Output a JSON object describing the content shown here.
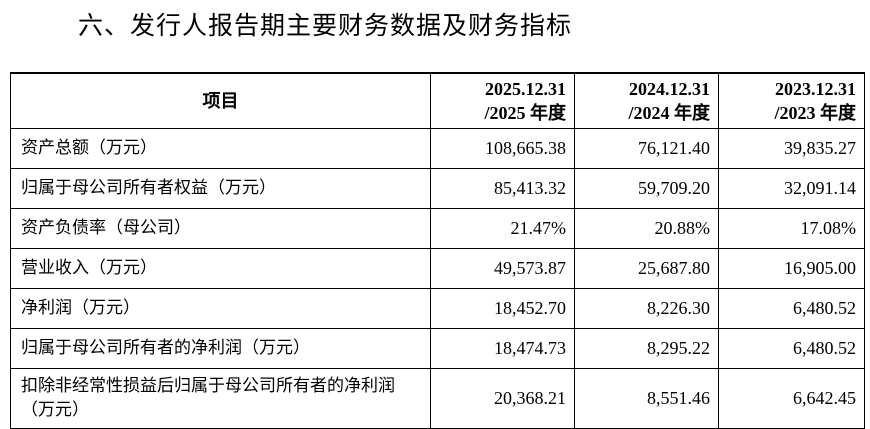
{
  "header": {
    "title": "六、发行人报告期主要财务数据及财务指标"
  },
  "table": {
    "columns": [
      {
        "lines": [
          "项目"
        ]
      },
      {
        "lines": [
          "2025.12.31",
          "/2025 年度"
        ]
      },
      {
        "lines": [
          "2024.12.31",
          "/2024 年度"
        ]
      },
      {
        "lines": [
          "2023.12.31",
          "/2023 年度"
        ]
      }
    ],
    "rows": [
      [
        "资产总额（万元）",
        "108,665.38",
        "76,121.40",
        "39,835.27"
      ],
      [
        "归属于母公司所有者权益（万元）",
        "85,413.32",
        "59,709.20",
        "32,091.14"
      ],
      [
        "资产负债率（母公司）",
        "21.47%",
        "20.88%",
        "17.08%"
      ],
      [
        "营业收入（万元）",
        "49,573.87",
        "25,687.80",
        "16,905.00"
      ],
      [
        "净利润（万元）",
        "18,452.70",
        "8,226.30",
        "6,480.52"
      ],
      [
        "归属于母公司所有者的净利润（万元）",
        "18,474.73",
        "8,295.22",
        "6,480.52"
      ],
      [
        "扣除非经常性损益后归属于母公司所有者的净利润（万元）",
        "20,368.21",
        "8,551.46",
        "6,642.45"
      ]
    ]
  }
}
